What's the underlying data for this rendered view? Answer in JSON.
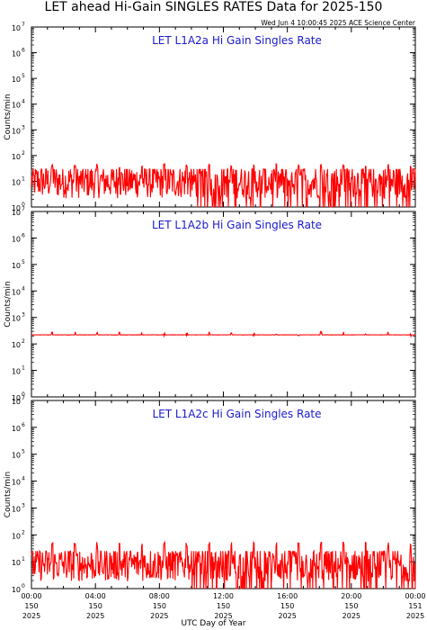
{
  "header": {
    "title": "LET ahead Hi-Gain SINGLES RATES Data for 2025-150",
    "timestamp": "Wed Jun  4 10:00:45 2025 ACE Science Center"
  },
  "x_axis_label": "UTC Day of Year",
  "colors": {
    "trace": "#ff0000",
    "panel_title": "#1a1acc",
    "axes": "#000000"
  },
  "chart_data": [
    {
      "type": "line",
      "title": "LET L1A2a Hi Gain Singles Rate",
      "ylabel": "Counts/min",
      "yscale": "log",
      "ylim": [
        1,
        10000000
      ],
      "xlim": [
        0,
        24
      ],
      "x_unit": "hours UTC from 2025-150 00:00",
      "series": [
        {
          "baseline": 10,
          "noise_min": 1,
          "noise_max": 30,
          "spikes": 40,
          "spike_interval_h": 1.4,
          "color": "#ff0000"
        }
      ]
    },
    {
      "type": "line",
      "title": "LET L1A2b Hi Gain Singles Rate",
      "ylabel": "Counts/min",
      "yscale": "log",
      "ylim": [
        1,
        10000000
      ],
      "xlim": [
        0,
        24
      ],
      "x_unit": "hours UTC from 2025-150 00:00",
      "series": [
        {
          "baseline": 220,
          "noise_min": 210,
          "noise_max": 235,
          "spikes": 240,
          "spike_interval_h": 1.4,
          "color": "#ff0000"
        }
      ]
    },
    {
      "type": "line",
      "title": "LET L1A2c Hi Gain Singles Rate",
      "ylabel": "Counts/min",
      "yscale": "log",
      "ylim": [
        1,
        10000000
      ],
      "xlim": [
        0,
        24
      ],
      "x_unit": "hours UTC from 2025-150 00:00",
      "series": [
        {
          "baseline": 8,
          "noise_min": 1,
          "noise_max": 25,
          "spikes": 45,
          "spike_interval_h": 1.4,
          "color": "#ff0000"
        }
      ]
    }
  ],
  "y_tick_labels": [
    {
      "base": "10",
      "exp": "0"
    },
    {
      "base": "10",
      "exp": "1"
    },
    {
      "base": "10",
      "exp": "2"
    },
    {
      "base": "10",
      "exp": "3"
    },
    {
      "base": "10",
      "exp": "4"
    },
    {
      "base": "10",
      "exp": "5"
    },
    {
      "base": "10",
      "exp": "6"
    },
    {
      "base": "10",
      "exp": "7"
    }
  ],
  "x_tick_labels": [
    {
      "time": "00:00",
      "doy": "150",
      "year": "2025"
    },
    {
      "time": "04:00",
      "doy": "150",
      "year": "2025"
    },
    {
      "time": "08:00",
      "doy": "150",
      "year": "2025"
    },
    {
      "time": "12:00",
      "doy": "150",
      "year": "2025"
    },
    {
      "time": "16:00",
      "doy": "150",
      "year": "2025"
    },
    {
      "time": "20:00",
      "doy": "150",
      "year": "2025"
    },
    {
      "time": "00:00",
      "doy": "151",
      "year": "2025"
    }
  ]
}
